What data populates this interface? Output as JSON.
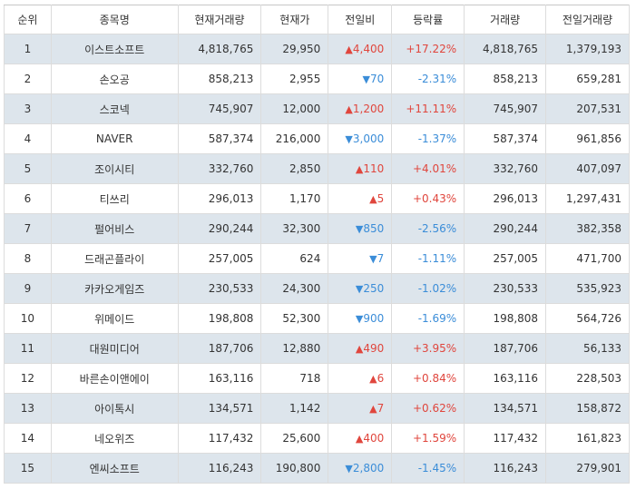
{
  "headers": [
    "순위",
    "종목명",
    "현재거래량",
    "현재가",
    "전일비",
    "등락률",
    "거래량",
    "전일거래량"
  ],
  "colors": {
    "up": "#e0463d",
    "down": "#3b8dd8",
    "stripe": "#dde5ec"
  },
  "rows": [
    {
      "rank": "1",
      "name": "이스트소프트",
      "cur_volume": "4,818,765",
      "price": "29,950",
      "dir": "up",
      "arrow": "▲",
      "change": "4,400",
      "rate": "+17.22%",
      "volume": "4,818,765",
      "prev_volume": "1,379,193"
    },
    {
      "rank": "2",
      "name": "손오공",
      "cur_volume": "858,213",
      "price": "2,955",
      "dir": "down",
      "arrow": "▼",
      "change": "70",
      "rate": "-2.31%",
      "volume": "858,213",
      "prev_volume": "659,281"
    },
    {
      "rank": "3",
      "name": "스코넥",
      "cur_volume": "745,907",
      "price": "12,000",
      "dir": "up",
      "arrow": "▲",
      "change": "1,200",
      "rate": "+11.11%",
      "volume": "745,907",
      "prev_volume": "207,531"
    },
    {
      "rank": "4",
      "name": "NAVER",
      "cur_volume": "587,374",
      "price": "216,000",
      "dir": "down",
      "arrow": "▼",
      "change": "3,000",
      "rate": "-1.37%",
      "volume": "587,374",
      "prev_volume": "961,856"
    },
    {
      "rank": "5",
      "name": "조이시티",
      "cur_volume": "332,760",
      "price": "2,850",
      "dir": "up",
      "arrow": "▲",
      "change": "110",
      "rate": "+4.01%",
      "volume": "332,760",
      "prev_volume": "407,097"
    },
    {
      "rank": "6",
      "name": "티쓰리",
      "cur_volume": "296,013",
      "price": "1,170",
      "dir": "up",
      "arrow": "▲",
      "change": "5",
      "rate": "+0.43%",
      "volume": "296,013",
      "prev_volume": "1,297,431"
    },
    {
      "rank": "7",
      "name": "펄어비스",
      "cur_volume": "290,244",
      "price": "32,300",
      "dir": "down",
      "arrow": "▼",
      "change": "850",
      "rate": "-2.56%",
      "volume": "290,244",
      "prev_volume": "382,358"
    },
    {
      "rank": "8",
      "name": "드래곤플라이",
      "cur_volume": "257,005",
      "price": "624",
      "dir": "down",
      "arrow": "▼",
      "change": "7",
      "rate": "-1.11%",
      "volume": "257,005",
      "prev_volume": "471,700"
    },
    {
      "rank": "9",
      "name": "카카오게임즈",
      "cur_volume": "230,533",
      "price": "24,300",
      "dir": "down",
      "arrow": "▼",
      "change": "250",
      "rate": "-1.02%",
      "volume": "230,533",
      "prev_volume": "535,923"
    },
    {
      "rank": "10",
      "name": "위메이드",
      "cur_volume": "198,808",
      "price": "52,300",
      "dir": "down",
      "arrow": "▼",
      "change": "900",
      "rate": "-1.69%",
      "volume": "198,808",
      "prev_volume": "564,726"
    },
    {
      "rank": "11",
      "name": "대원미디어",
      "cur_volume": "187,706",
      "price": "12,880",
      "dir": "up",
      "arrow": "▲",
      "change": "490",
      "rate": "+3.95%",
      "volume": "187,706",
      "prev_volume": "56,133"
    },
    {
      "rank": "12",
      "name": "바른손이앤에이",
      "cur_volume": "163,116",
      "price": "718",
      "dir": "up",
      "arrow": "▲",
      "change": "6",
      "rate": "+0.84%",
      "volume": "163,116",
      "prev_volume": "228,503"
    },
    {
      "rank": "13",
      "name": "아이톡시",
      "cur_volume": "134,571",
      "price": "1,142",
      "dir": "up",
      "arrow": "▲",
      "change": "7",
      "rate": "+0.62%",
      "volume": "134,571",
      "prev_volume": "158,872"
    },
    {
      "rank": "14",
      "name": "네오위즈",
      "cur_volume": "117,432",
      "price": "25,600",
      "dir": "up",
      "arrow": "▲",
      "change": "400",
      "rate": "+1.59%",
      "volume": "117,432",
      "prev_volume": "161,823"
    },
    {
      "rank": "15",
      "name": "엔씨소프트",
      "cur_volume": "116,243",
      "price": "190,800",
      "dir": "down",
      "arrow": "▼",
      "change": "2,800",
      "rate": "-1.45%",
      "volume": "116,243",
      "prev_volume": "279,901"
    }
  ]
}
